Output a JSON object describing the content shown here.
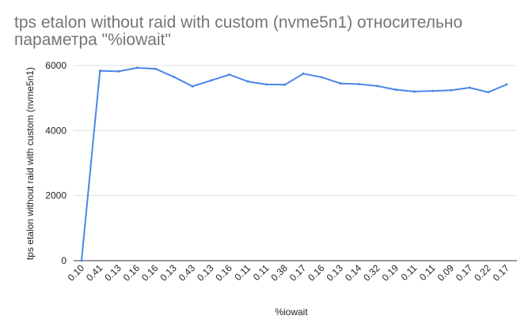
{
  "chart_data": {
    "type": "line",
    "title": "tps etalon without raid with custom (nvme5n1) относительно параметра \"%iowait\"",
    "xlabel": "%iowait",
    "ylabel": "tps etalon without raid with custom (nvme5n1)",
    "categories": [
      "0.10",
      "0.41",
      "0.13",
      "0.16",
      "0.16",
      "0.13",
      "0.43",
      "0.13",
      "0.16",
      "0.11",
      "0.11",
      "0.38",
      "0.17",
      "0.16",
      "0.13",
      "0.14",
      "0.32",
      "0.19",
      "0.11",
      "0.11",
      "0.09",
      "0.17",
      "0.22",
      "0.17"
    ],
    "series": [
      {
        "name": "",
        "color": "#4a86e8",
        "values": [
          0,
          5840,
          5820,
          5930,
          5900,
          5650,
          5360,
          5540,
          5720,
          5510,
          5420,
          5410,
          5750,
          5640,
          5450,
          5430,
          5370,
          5260,
          5200,
          5220,
          5240,
          5320,
          5180,
          5420
        ]
      }
    ],
    "ylim": [
      0,
      6000
    ],
    "yticks": [
      0,
      2000,
      4000,
      6000
    ],
    "grid": true,
    "legend": "none"
  }
}
